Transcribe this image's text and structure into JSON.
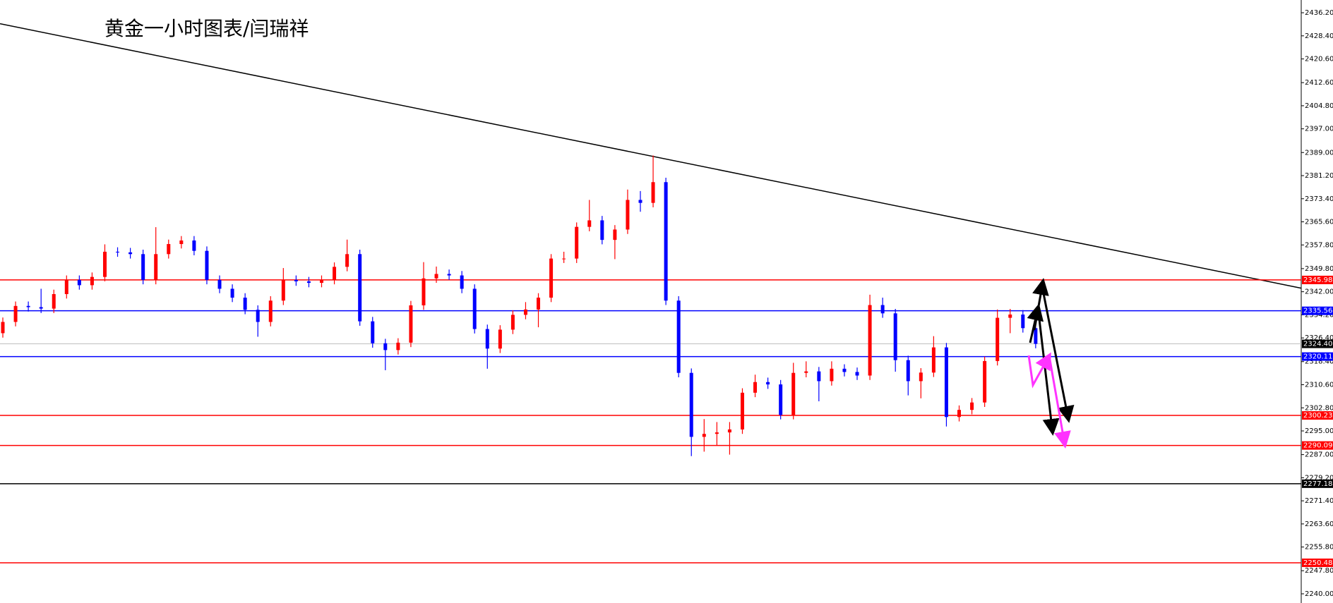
{
  "chart_data": {
    "type": "candlestick",
    "title": "黄金一小时图表/闫瑞祥",
    "up_color": "#ff0000",
    "down_color": "#0000ff",
    "open": [
      2328,
      2331.8,
      2337.2,
      2336.8,
      2336.3,
      2341.2,
      2346,
      2344.2,
      2347,
      2355.5,
      2355.3,
      2354.7,
      2346,
      2354.7,
      2358.1,
      2359.3,
      2355.8,
      2346,
      2343,
      2340,
      2335.9,
      2331.8,
      2339,
      2346,
      2345.5,
      2345,
      2346,
      2350.4,
      2354.7,
      2332,
      2324.6,
      2322.3,
      2324.8,
      2337.4,
      2346.5,
      2348,
      2347.5,
      2343,
      2329.4,
      2322.8,
      2329.2,
      2334.2,
      2336,
      2340,
      2353.2,
      2353.2,
      2363.9,
      2366.1,
      2359.5,
      2363,
      2373,
      2372,
      2379,
      2339,
      2314.6,
      2293,
      2294,
      2294.5,
      2295.5,
      2307.9,
      2311.5,
      2310.7,
      2300.4,
      2314.6,
      2315.1,
      2311.8,
      2316,
      2314.9,
      2313.7,
      2337.5,
      2334.7,
      2318.9,
      2311.8,
      2314.7,
      2323.2,
      2299.7,
      2302.1,
      2304.6,
      2318.6,
      2333.2,
      2334.3,
      2329.7
    ],
    "high": [
      2333.3,
      2338.7,
      2338.7,
      2343,
      2342.7,
      2347.5,
      2347.5,
      2348.5,
      2358,
      2357,
      2356.8,
      2356.2,
      2363.8,
      2359.6,
      2360.8,
      2360.8,
      2357.3,
      2347.5,
      2344.5,
      2341.5,
      2337.4,
      2340.5,
      2350,
      2347.5,
      2347,
      2347.5,
      2351.9,
      2359.6,
      2356.2,
      2333.5,
      2326.1,
      2326.3,
      2338.9,
      2352,
      2350.5,
      2349.5,
      2349,
      2344.5,
      2330.9,
      2330.7,
      2335.7,
      2338.5,
      2341.5,
      2354.7,
      2355.5,
      2365.4,
      2373,
      2367.6,
      2364.5,
      2376.5,
      2376,
      2388,
      2380.5,
      2340.5,
      2316.1,
      2299,
      2298,
      2298,
      2309.4,
      2314,
      2313,
      2312.2,
      2318,
      2318.5,
      2316.6,
      2318.5,
      2317.5,
      2316.4,
      2341,
      2340,
      2336.2,
      2320.4,
      2316.2,
      2327,
      2324.7,
      2303.6,
      2306.1,
      2320.1,
      2336,
      2336.2,
      2335.8,
      2331.2
    ],
    "low": [
      2326.5,
      2330.3,
      2335.3,
      2334.8,
      2334.8,
      2339.7,
      2342.7,
      2342.7,
      2345.5,
      2353.8,
      2353.2,
      2344.5,
      2344.5,
      2353.2,
      2356.6,
      2354.3,
      2344.5,
      2341.5,
      2338.5,
      2334.4,
      2326.8,
      2330.3,
      2337.5,
      2344,
      2343.5,
      2343.5,
      2344.5,
      2348.9,
      2330.5,
      2323.1,
      2315.5,
      2320.8,
      2323.3,
      2335.9,
      2345,
      2346,
      2341.5,
      2327.9,
      2316,
      2321.3,
      2327.7,
      2332.7,
      2330,
      2338.5,
      2351.7,
      2351.7,
      2362.4,
      2358,
      2353,
      2361.5,
      2369,
      2370.5,
      2337.5,
      2313.1,
      2286.5,
      2288,
      2290,
      2287,
      2294,
      2306.4,
      2309.2,
      2298.9,
      2298.9,
      2313.1,
      2305,
      2310.3,
      2313.4,
      2312.2,
      2312.2,
      2333.2,
      2315,
      2307,
      2306,
      2313.2,
      2296.5,
      2298.2,
      2300.6,
      2303.1,
      2317.1,
      2328,
      2328.2,
      2322.9
    ],
    "close": [
      2331.8,
      2337.2,
      2336.8,
      2336.3,
      2341.2,
      2346,
      2344.2,
      2347,
      2355.5,
      2355.3,
      2354.7,
      2346,
      2354.7,
      2358.1,
      2359.3,
      2355.8,
      2346,
      2343,
      2340,
      2335.9,
      2331.8,
      2339,
      2346,
      2345.5,
      2345,
      2346,
      2350.4,
      2354.7,
      2332,
      2324.6,
      2322.3,
      2324.8,
      2337.4,
      2346.5,
      2348,
      2347.5,
      2343,
      2329.4,
      2322.8,
      2329.2,
      2334.2,
      2336,
      2340,
      2353.2,
      2353.2,
      2363.9,
      2366.1,
      2359.5,
      2363,
      2373,
      2372,
      2379,
      2339,
      2314.6,
      2293,
      2294,
      2294.5,
      2295.5,
      2307.9,
      2311.5,
      2310.7,
      2300.4,
      2314.6,
      2315.1,
      2311.8,
      2316,
      2314.9,
      2313.7,
      2337.5,
      2334.7,
      2318.9,
      2311.8,
      2314.7,
      2323.2,
      2299.7,
      2302.1,
      2304.6,
      2318.6,
      2333.2,
      2334.3,
      2329.7,
      2324.4
    ],
    "trendline": [
      2432.5,
      2343.2
    ],
    "levels": [
      {
        "value": 2345.98,
        "color": "#ff0000"
      },
      {
        "value": 2335.56,
        "color": "#0000ff"
      },
      {
        "value": 2320.11,
        "color": "#0000ff"
      },
      {
        "value": 2300.23,
        "color": "#ff0000"
      },
      {
        "value": 2290.09,
        "color": "#ff0000"
      },
      {
        "value": 2277.18,
        "color": "#000000"
      },
      {
        "value": 2250.48,
        "color": "#ff0000"
      }
    ],
    "last_price": {
      "value": 2324.4,
      "label": "2324.40",
      "color": "#c0c0c0"
    },
    "ylim": [
      2236.9,
      2440.5
    ],
    "yticks": [
      {
        "value": 2436.2,
        "label": "2436.20"
      },
      {
        "value": 2428.4,
        "label": "2428.40"
      },
      {
        "value": 2420.6,
        "label": "2420.60"
      },
      {
        "value": 2412.6,
        "label": "2412.60"
      },
      {
        "value": 2404.8,
        "label": "2404.80"
      },
      {
        "value": 2397,
        "label": "2397.00"
      },
      {
        "value": 2389,
        "label": "2389.00"
      },
      {
        "value": 2381.2,
        "label": "2381.20"
      },
      {
        "value": 2373.4,
        "label": "2373.40"
      },
      {
        "value": 2365.6,
        "label": "2365.60"
      },
      {
        "value": 2357.8,
        "label": "2357.80"
      },
      {
        "value": 2349.8,
        "label": "2349.80"
      },
      {
        "value": 2342,
        "label": "2342.00"
      },
      {
        "value": 2334.2,
        "label": "2334.20"
      },
      {
        "value": 2326.4,
        "label": "2326.40"
      },
      {
        "value": 2318.4,
        "label": "2318.40"
      },
      {
        "value": 2310.6,
        "label": "2310.60"
      },
      {
        "value": 2302.8,
        "label": "2302.80"
      },
      {
        "value": 2295,
        "label": "2295.00"
      },
      {
        "value": 2287,
        "label": "2287.00"
      },
      {
        "value": 2279.2,
        "label": "2279.20"
      },
      {
        "value": 2271.4,
        "label": "2271.40"
      },
      {
        "value": 2263.6,
        "label": "2263.60"
      },
      {
        "value": 2255.8,
        "label": "2255.80"
      },
      {
        "value": 2247.8,
        "label": "2247.80"
      },
      {
        "value": 2240,
        "label": "2240.00"
      }
    ]
  }
}
